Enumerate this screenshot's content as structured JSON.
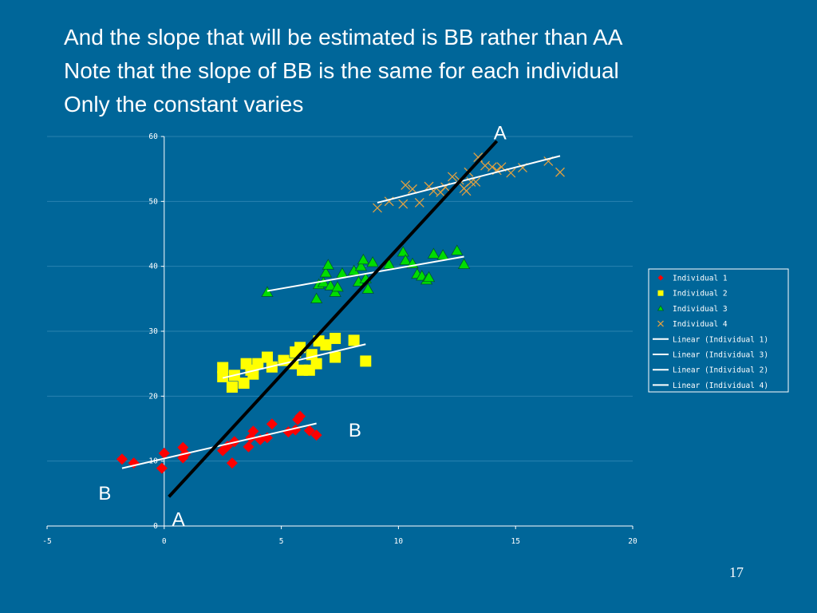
{
  "slide": {
    "title_lines": [
      "And the slope that will be estimated is BB rather than AA",
      "Note that the slope of BB is the same for each individual",
      "Only the constant varies"
    ],
    "page_number": "17"
  },
  "colors": {
    "background": "#006699",
    "individual_1": "#ff0000",
    "individual_2": "#ffff00",
    "individual_3": "#00dd00",
    "individual_4": "#e0a040",
    "fit_line": "#ffffff",
    "aa_line": "#000000",
    "gridline": "#2a82b0"
  },
  "chart_data": {
    "type": "scatter",
    "title": "",
    "xlabel": "",
    "ylabel": "",
    "xlim": [
      -5,
      20
    ],
    "ylim": [
      0,
      60
    ],
    "x_ticks": [
      "-5",
      "0",
      "5",
      "10",
      "15",
      "20"
    ],
    "y_ticks": [
      "0",
      "10",
      "20",
      "30",
      "40",
      "50",
      "60"
    ],
    "grid": "horizontal",
    "legend_position": "right",
    "series": [
      {
        "name": "Individual 1",
        "marker": "diamond",
        "points": [
          [
            -1.8,
            10.3
          ],
          [
            -1.3,
            9.7
          ],
          [
            -0.1,
            8.9
          ],
          [
            0.0,
            11.2
          ],
          [
            0.8,
            10.5
          ],
          [
            0.9,
            11.1
          ],
          [
            0.8,
            12.1
          ],
          [
            2.5,
            11.6
          ],
          [
            2.7,
            12.3
          ],
          [
            2.9,
            9.7
          ],
          [
            3.0,
            13.0
          ],
          [
            3.6,
            12.2
          ],
          [
            3.7,
            13.6
          ],
          [
            3.8,
            14.6
          ],
          [
            4.1,
            13.3
          ],
          [
            4.4,
            13.6
          ],
          [
            4.6,
            15.7
          ],
          [
            5.3,
            14.5
          ],
          [
            5.6,
            14.8
          ],
          [
            5.7,
            16.4
          ],
          [
            5.8,
            16.9
          ],
          [
            6.2,
            14.7
          ],
          [
            6.5,
            14.0
          ]
        ]
      },
      {
        "name": "Individual 2",
        "marker": "square",
        "points": [
          [
            2.5,
            24.4
          ],
          [
            2.5,
            23.0
          ],
          [
            2.9,
            21.4
          ],
          [
            3.0,
            23.2
          ],
          [
            3.4,
            22.0
          ],
          [
            3.5,
            25.0
          ],
          [
            3.7,
            24.0
          ],
          [
            3.8,
            23.4
          ],
          [
            4.0,
            25.0
          ],
          [
            4.4,
            26.0
          ],
          [
            4.6,
            24.5
          ],
          [
            5.1,
            25.5
          ],
          [
            5.5,
            25.0
          ],
          [
            5.6,
            26.8
          ],
          [
            5.8,
            27.5
          ],
          [
            5.9,
            24.0
          ],
          [
            6.2,
            24.0
          ],
          [
            6.3,
            26.4
          ],
          [
            6.5,
            25.0
          ],
          [
            6.6,
            28.5
          ],
          [
            6.9,
            27.9
          ],
          [
            7.3,
            28.9
          ],
          [
            7.3,
            26.0
          ],
          [
            8.1,
            28.6
          ],
          [
            8.6,
            25.4
          ]
        ]
      },
      {
        "name": "Individual 3",
        "marker": "triangle",
        "points": [
          [
            4.4,
            36.0
          ],
          [
            6.5,
            35.0
          ],
          [
            6.6,
            37.2
          ],
          [
            6.8,
            37.5
          ],
          [
            6.9,
            39.0
          ],
          [
            7.0,
            40.2
          ],
          [
            7.1,
            37.0
          ],
          [
            7.3,
            36.0
          ],
          [
            7.4,
            36.8
          ],
          [
            7.6,
            38.9
          ],
          [
            8.1,
            39.3
          ],
          [
            8.3,
            37.6
          ],
          [
            8.4,
            40.0
          ],
          [
            8.5,
            41.0
          ],
          [
            8.6,
            38.1
          ],
          [
            8.7,
            36.5
          ],
          [
            8.9,
            40.6
          ],
          [
            9.6,
            40.3
          ],
          [
            10.2,
            42.2
          ],
          [
            10.3,
            40.9
          ],
          [
            10.6,
            40.4
          ],
          [
            10.8,
            38.8
          ],
          [
            11.0,
            38.5
          ],
          [
            11.2,
            37.9
          ],
          [
            11.3,
            38.3
          ],
          [
            11.5,
            41.9
          ],
          [
            11.9,
            41.7
          ],
          [
            12.5,
            42.4
          ],
          [
            12.8,
            40.3
          ]
        ]
      },
      {
        "name": "Individual 4",
        "marker": "cross",
        "points": [
          [
            9.1,
            49.0
          ],
          [
            9.6,
            50.0
          ],
          [
            10.2,
            49.6
          ],
          [
            10.3,
            52.5
          ],
          [
            10.6,
            51.9
          ],
          [
            10.9,
            49.8
          ],
          [
            11.3,
            52.3
          ],
          [
            11.5,
            51.6
          ],
          [
            11.8,
            51.4
          ],
          [
            12.0,
            52.2
          ],
          [
            12.3,
            53.8
          ],
          [
            12.6,
            53.3
          ],
          [
            12.8,
            52.0
          ],
          [
            12.9,
            51.6
          ],
          [
            13.0,
            54.5
          ],
          [
            13.1,
            53.0
          ],
          [
            13.3,
            53.0
          ],
          [
            13.4,
            56.8
          ],
          [
            13.7,
            55.5
          ],
          [
            14.0,
            55.3
          ],
          [
            14.2,
            54.8
          ],
          [
            14.4,
            55.3
          ],
          [
            14.8,
            54.4
          ],
          [
            15.3,
            55.2
          ],
          [
            16.4,
            56.2
          ],
          [
            16.9,
            54.5
          ]
        ]
      },
      {
        "name": "Linear (Individual 1)",
        "type": "line",
        "points": [
          [
            -1.8,
            8.9
          ],
          [
            6.5,
            15.8
          ]
        ]
      },
      {
        "name": "Linear (Individual 3)",
        "type": "line",
        "points": [
          [
            4.4,
            36.2
          ],
          [
            12.8,
            41.5
          ]
        ]
      },
      {
        "name": "Linear (Individual 2)",
        "type": "line",
        "points": [
          [
            2.5,
            22.8
          ],
          [
            8.6,
            28.0
          ]
        ]
      },
      {
        "name": "Linear (Individual 4)",
        "type": "line",
        "points": [
          [
            9.1,
            49.8
          ],
          [
            16.9,
            57.0
          ]
        ]
      }
    ],
    "legend": [
      "Individual 1",
      "Individual 2",
      "Individual 3",
      "Individual 4",
      "Linear (Individual 1)",
      "Linear (Individual 3)",
      "Linear (Individual 2)",
      "Linear (Individual 4)"
    ],
    "annotations": [
      {
        "text": "A",
        "line": "AA",
        "end": "upper",
        "at": [
          14.2,
          59.3
        ]
      },
      {
        "text": "A",
        "line": "AA",
        "end": "lower",
        "at": [
          0.2,
          4.5
        ]
      },
      {
        "text": "B",
        "line": "BB",
        "end": "upper",
        "at": [
          7.6,
          15.5
        ]
      },
      {
        "text": "B",
        "line": "BB",
        "end": "lower",
        "at": [
          -2.4,
          7.0
        ]
      }
    ],
    "aa_line": [
      [
        0.2,
        4.5
      ],
      [
        14.2,
        59.3
      ]
    ]
  }
}
